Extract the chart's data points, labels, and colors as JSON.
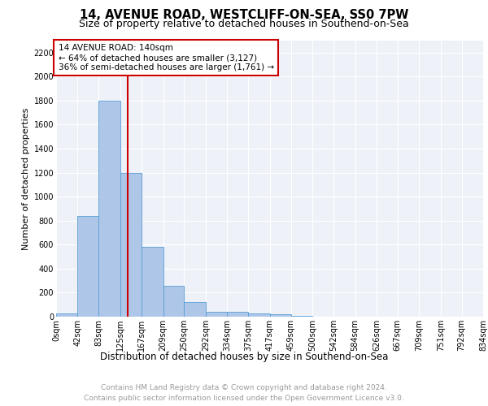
{
  "title1": "14, AVENUE ROAD, WESTCLIFF-ON-SEA, SS0 7PW",
  "title2": "Size of property relative to detached houses in Southend-on-Sea",
  "xlabel": "Distribution of detached houses by size in Southend-on-Sea",
  "ylabel": "Number of detached properties",
  "bin_edges": [
    0,
    42,
    83,
    125,
    167,
    209,
    250,
    292,
    334,
    375,
    417,
    459,
    500,
    542,
    584,
    626,
    667,
    709,
    751,
    792,
    834
  ],
  "bar_heights": [
    25,
    840,
    1800,
    1200,
    585,
    255,
    125,
    42,
    42,
    25,
    20,
    10,
    0,
    0,
    0,
    0,
    0,
    0,
    0,
    0
  ],
  "bar_color": "#aec6e8",
  "bar_edgecolor": "#5a9fd4",
  "property_size": 140,
  "annotation_title": "14 AVENUE ROAD: 140sqm",
  "annotation_line1": "← 64% of detached houses are smaller (3,127)",
  "annotation_line2": "36% of semi-detached houses are larger (1,761) →",
  "vline_color": "#cc0000",
  "annotation_box_color": "#cc0000",
  "ylim": [
    0,
    2300
  ],
  "yticks": [
    0,
    200,
    400,
    600,
    800,
    1000,
    1200,
    1400,
    1600,
    1800,
    2000,
    2200
  ],
  "background_color": "#eef2f8",
  "grid_color": "#ffffff",
  "footer_line1": "Contains HM Land Registry data © Crown copyright and database right 2024.",
  "footer_line2": "Contains public sector information licensed under the Open Government Licence v3.0.",
  "title1_fontsize": 10.5,
  "title2_fontsize": 9,
  "xlabel_fontsize": 8.5,
  "ylabel_fontsize": 8,
  "tick_fontsize": 7,
  "annotation_fontsize": 7.5,
  "footer_fontsize": 6.5
}
